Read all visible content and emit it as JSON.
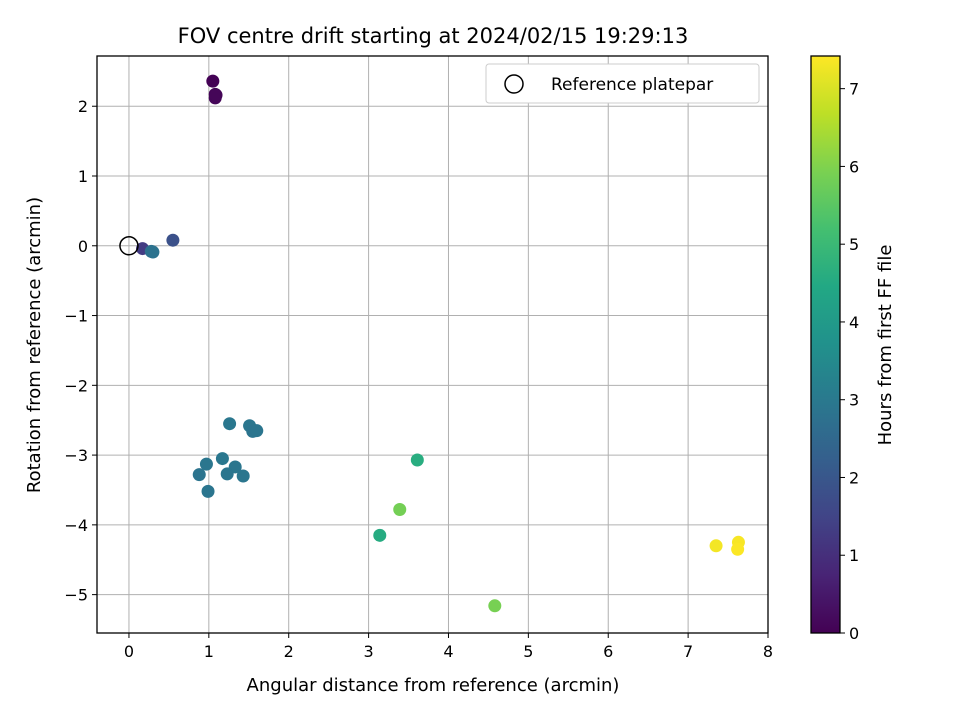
{
  "chart_data": {
    "type": "scatter",
    "title": "FOV centre drift starting at 2024/02/15 19:29:13",
    "xlabel": "Angular distance from reference (arcmin)",
    "ylabel": "Rotation from reference (arcmin)",
    "xlim": [
      -0.4,
      8.0
    ],
    "ylim": [
      -5.55,
      2.72
    ],
    "xticks": [
      0,
      1,
      2,
      3,
      4,
      5,
      6,
      7,
      8
    ],
    "yticks": [
      -5,
      -4,
      -3,
      -2,
      -1,
      0,
      1,
      2
    ],
    "xtick_labels": [
      "0",
      "1",
      "2",
      "3",
      "4",
      "5",
      "6",
      "7",
      "8"
    ],
    "ytick_labels": [
      "−5",
      "−4",
      "−3",
      "−2",
      "−1",
      "0",
      "1",
      "2"
    ],
    "grid": true,
    "colormap": "viridis",
    "reference": {
      "name": "Reference platepar",
      "x": 0,
      "y": 0
    },
    "legend": {
      "entries": [
        "Reference platepar"
      ],
      "placement": "top-right"
    },
    "colorbar": {
      "label": "Hours from first FF file",
      "range": [
        0,
        7.42
      ],
      "ticks": [
        0,
        1,
        2,
        3,
        4,
        5,
        6,
        7
      ],
      "tick_labels": [
        "0",
        "1",
        "2",
        "3",
        "4",
        "5",
        "6",
        "7"
      ]
    },
    "points": [
      {
        "x": 1.05,
        "y": 2.36,
        "hours": 0.02
      },
      {
        "x": 1.08,
        "y": 2.17,
        "hours": 0.05
      },
      {
        "x": 1.08,
        "y": 2.12,
        "hours": 0.08
      },
      {
        "x": 1.09,
        "y": 2.16,
        "hours": 0.1
      },
      {
        "x": 0.17,
        "y": -0.04,
        "hours": 1.3
      },
      {
        "x": 0.55,
        "y": 0.08,
        "hours": 1.85
      },
      {
        "x": 0.28,
        "y": -0.08,
        "hours": 2.75
      },
      {
        "x": 0.3,
        "y": -0.09,
        "hours": 2.8
      },
      {
        "x": 1.26,
        "y": -2.55,
        "hours": 2.95
      },
      {
        "x": 1.51,
        "y": -2.58,
        "hours": 2.9
      },
      {
        "x": 1.55,
        "y": -2.66,
        "hours": 2.85
      },
      {
        "x": 1.6,
        "y": -2.65,
        "hours": 2.88
      },
      {
        "x": 1.17,
        "y": -3.05,
        "hours": 2.95
      },
      {
        "x": 0.97,
        "y": -3.13,
        "hours": 2.9
      },
      {
        "x": 0.88,
        "y": -3.28,
        "hours": 2.85
      },
      {
        "x": 1.33,
        "y": -3.17,
        "hours": 2.92
      },
      {
        "x": 1.23,
        "y": -3.27,
        "hours": 2.88
      },
      {
        "x": 1.43,
        "y": -3.3,
        "hours": 2.9
      },
      {
        "x": 0.99,
        "y": -3.52,
        "hours": 2.87
      },
      {
        "x": 3.61,
        "y": -3.07,
        "hours": 4.6
      },
      {
        "x": 3.14,
        "y": -4.15,
        "hours": 4.55
      },
      {
        "x": 3.39,
        "y": -3.78,
        "hours": 5.85
      },
      {
        "x": 4.58,
        "y": -5.16,
        "hours": 5.9
      },
      {
        "x": 7.35,
        "y": -4.3,
        "hours": 7.3
      },
      {
        "x": 7.63,
        "y": -4.25,
        "hours": 7.35
      },
      {
        "x": 7.62,
        "y": -4.35,
        "hours": 7.4
      }
    ]
  }
}
